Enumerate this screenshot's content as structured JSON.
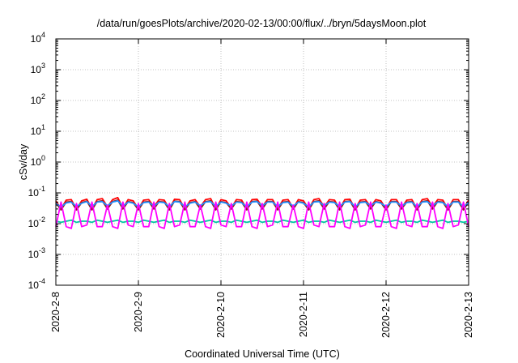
{
  "chart_data": {
    "type": "line",
    "title": "/data/run/goesPlots/archive/2020-02-13/00:00/flux/../bryn/5daysMoon.plot",
    "xlabel": "Coordinated Universal Time (UTC)",
    "ylabel": "cSv/day",
    "x_tick_labels": [
      "2020-2-8",
      "2020-2-9",
      "2020-2-10",
      "2020-2-11",
      "2020-2-12",
      "2020-2-13"
    ],
    "x_range": [
      "2020-02-08 00:00",
      "2020-02-13 00:00"
    ],
    "y_scale": "log",
    "ylim": [
      0.0001,
      10000
    ],
    "y_ticks": [
      {
        "base": "10",
        "exp": "-4"
      },
      {
        "base": "10",
        "exp": "-3"
      },
      {
        "base": "10",
        "exp": "-2"
      },
      {
        "base": "10",
        "exp": "-1"
      },
      {
        "base": "10",
        "exp": "0"
      },
      {
        "base": "10",
        "exp": "1"
      },
      {
        "base": "10",
        "exp": "2"
      },
      {
        "base": "10",
        "exp": "3"
      },
      {
        "base": "10",
        "exp": "4"
      }
    ],
    "grid": true,
    "legend": "none",
    "series": [
      {
        "color": "#ff0000",
        "values": [
          0.055,
          0.03,
          0.058,
          0.06,
          0.03,
          0.055,
          0.062,
          0.03,
          0.06,
          0.065,
          0.035,
          0.06,
          0.07,
          0.032,
          0.06,
          0.055,
          0.03,
          0.058,
          0.06,
          0.035,
          0.06,
          0.058,
          0.03,
          0.062,
          0.06,
          0.03,
          0.055,
          0.06,
          0.035,
          0.06,
          0.065,
          0.03,
          0.06,
          0.055,
          0.032,
          0.06,
          0.058,
          0.03,
          0.06,
          0.062,
          0.035,
          0.06,
          0.06,
          0.03,
          0.058,
          0.06,
          0.032,
          0.06,
          0.055,
          0.03,
          0.06,
          0.065,
          0.035,
          0.06,
          0.058,
          0.03,
          0.06,
          0.062,
          0.03,
          0.058,
          0.06,
          0.035,
          0.06,
          0.055,
          0.03,
          0.06,
          0.06,
          0.032,
          0.058,
          0.06,
          0.03,
          0.06,
          0.065,
          0.035,
          0.06,
          0.058,
          0.03,
          0.06,
          0.06,
          0.03,
          0.058
        ]
      },
      {
        "color": "#8b1a1a",
        "values": [
          0.048,
          0.028,
          0.05,
          0.052,
          0.028,
          0.048,
          0.054,
          0.028,
          0.052,
          0.055,
          0.03,
          0.052,
          0.058,
          0.03,
          0.052,
          0.048,
          0.028,
          0.05,
          0.052,
          0.03,
          0.052,
          0.05,
          0.028,
          0.054,
          0.052,
          0.028,
          0.048,
          0.052,
          0.03,
          0.052,
          0.055,
          0.028,
          0.052,
          0.048,
          0.03,
          0.052,
          0.05,
          0.028,
          0.052,
          0.054,
          0.03,
          0.052,
          0.052,
          0.028,
          0.05,
          0.052,
          0.03,
          0.052,
          0.048,
          0.028,
          0.052,
          0.055,
          0.03,
          0.052,
          0.05,
          0.028,
          0.052,
          0.054,
          0.028,
          0.05,
          0.052,
          0.03,
          0.052,
          0.048,
          0.028,
          0.052,
          0.052,
          0.03,
          0.05,
          0.052,
          0.028,
          0.052,
          0.055,
          0.03,
          0.052,
          0.05,
          0.028,
          0.052,
          0.052,
          0.028,
          0.05
        ]
      },
      {
        "color": "#1e90ff",
        "values": [
          0.045,
          0.035,
          0.047,
          0.05,
          0.036,
          0.046,
          0.052,
          0.036,
          0.05,
          0.052,
          0.038,
          0.05,
          0.055,
          0.037,
          0.05,
          0.046,
          0.035,
          0.048,
          0.05,
          0.037,
          0.05,
          0.048,
          0.035,
          0.052,
          0.05,
          0.035,
          0.046,
          0.05,
          0.038,
          0.05,
          0.052,
          0.036,
          0.05,
          0.046,
          0.037,
          0.05,
          0.048,
          0.035,
          0.05,
          0.052,
          0.038,
          0.05,
          0.05,
          0.036,
          0.048,
          0.05,
          0.037,
          0.05,
          0.046,
          0.035,
          0.05,
          0.052,
          0.038,
          0.05,
          0.048,
          0.036,
          0.05,
          0.052,
          0.035,
          0.048,
          0.05,
          0.038,
          0.05,
          0.046,
          0.036,
          0.05,
          0.05,
          0.037,
          0.048,
          0.05,
          0.035,
          0.05,
          0.052,
          0.038,
          0.05,
          0.048,
          0.036,
          0.05,
          0.05,
          0.035,
          0.048
        ]
      },
      {
        "color": "#00c8a0",
        "values": [
          0.012,
          0.011,
          0.012,
          0.013,
          0.011,
          0.012,
          0.012,
          0.011,
          0.013,
          0.012,
          0.011,
          0.012,
          0.013,
          0.011,
          0.012,
          0.012,
          0.011,
          0.013,
          0.012,
          0.011,
          0.012,
          0.013,
          0.011,
          0.012,
          0.012,
          0.011,
          0.013,
          0.012,
          0.011,
          0.012,
          0.013,
          0.011,
          0.012,
          0.012,
          0.011,
          0.013,
          0.012,
          0.011,
          0.012,
          0.013,
          0.011,
          0.012,
          0.012,
          0.011,
          0.013,
          0.012,
          0.011,
          0.012,
          0.013,
          0.011,
          0.012,
          0.012,
          0.011,
          0.013,
          0.012,
          0.011,
          0.012,
          0.013,
          0.011,
          0.012,
          0.012,
          0.011,
          0.013,
          0.012,
          0.011,
          0.012,
          0.013,
          0.011,
          0.012,
          0.012,
          0.011,
          0.013,
          0.012,
          0.011,
          0.012,
          0.013,
          0.011,
          0.012,
          0.012,
          0.011,
          0.012
        ]
      },
      {
        "color": "#ff00ff",
        "values": [
          0.008,
          0.05,
          0.008,
          0.007,
          0.045,
          0.008,
          0.009,
          0.05,
          0.008,
          0.008,
          0.04,
          0.008,
          0.007,
          0.05,
          0.009,
          0.008,
          0.045,
          0.008,
          0.008,
          0.05,
          0.008,
          0.007,
          0.045,
          0.008,
          0.009,
          0.05,
          0.008,
          0.008,
          0.04,
          0.008,
          0.007,
          0.05,
          0.009,
          0.008,
          0.045,
          0.008,
          0.008,
          0.05,
          0.008,
          0.007,
          0.045,
          0.008,
          0.009,
          0.05,
          0.008,
          0.008,
          0.04,
          0.008,
          0.007,
          0.05,
          0.009,
          0.008,
          0.045,
          0.008,
          0.008,
          0.05,
          0.008,
          0.007,
          0.045,
          0.008,
          0.009,
          0.05,
          0.008,
          0.008,
          0.04,
          0.008,
          0.007,
          0.05,
          0.009,
          0.008,
          0.045,
          0.008,
          0.008,
          0.05,
          0.008,
          0.007,
          0.045,
          0.008,
          0.009,
          0.05,
          0.008
        ]
      }
    ]
  }
}
